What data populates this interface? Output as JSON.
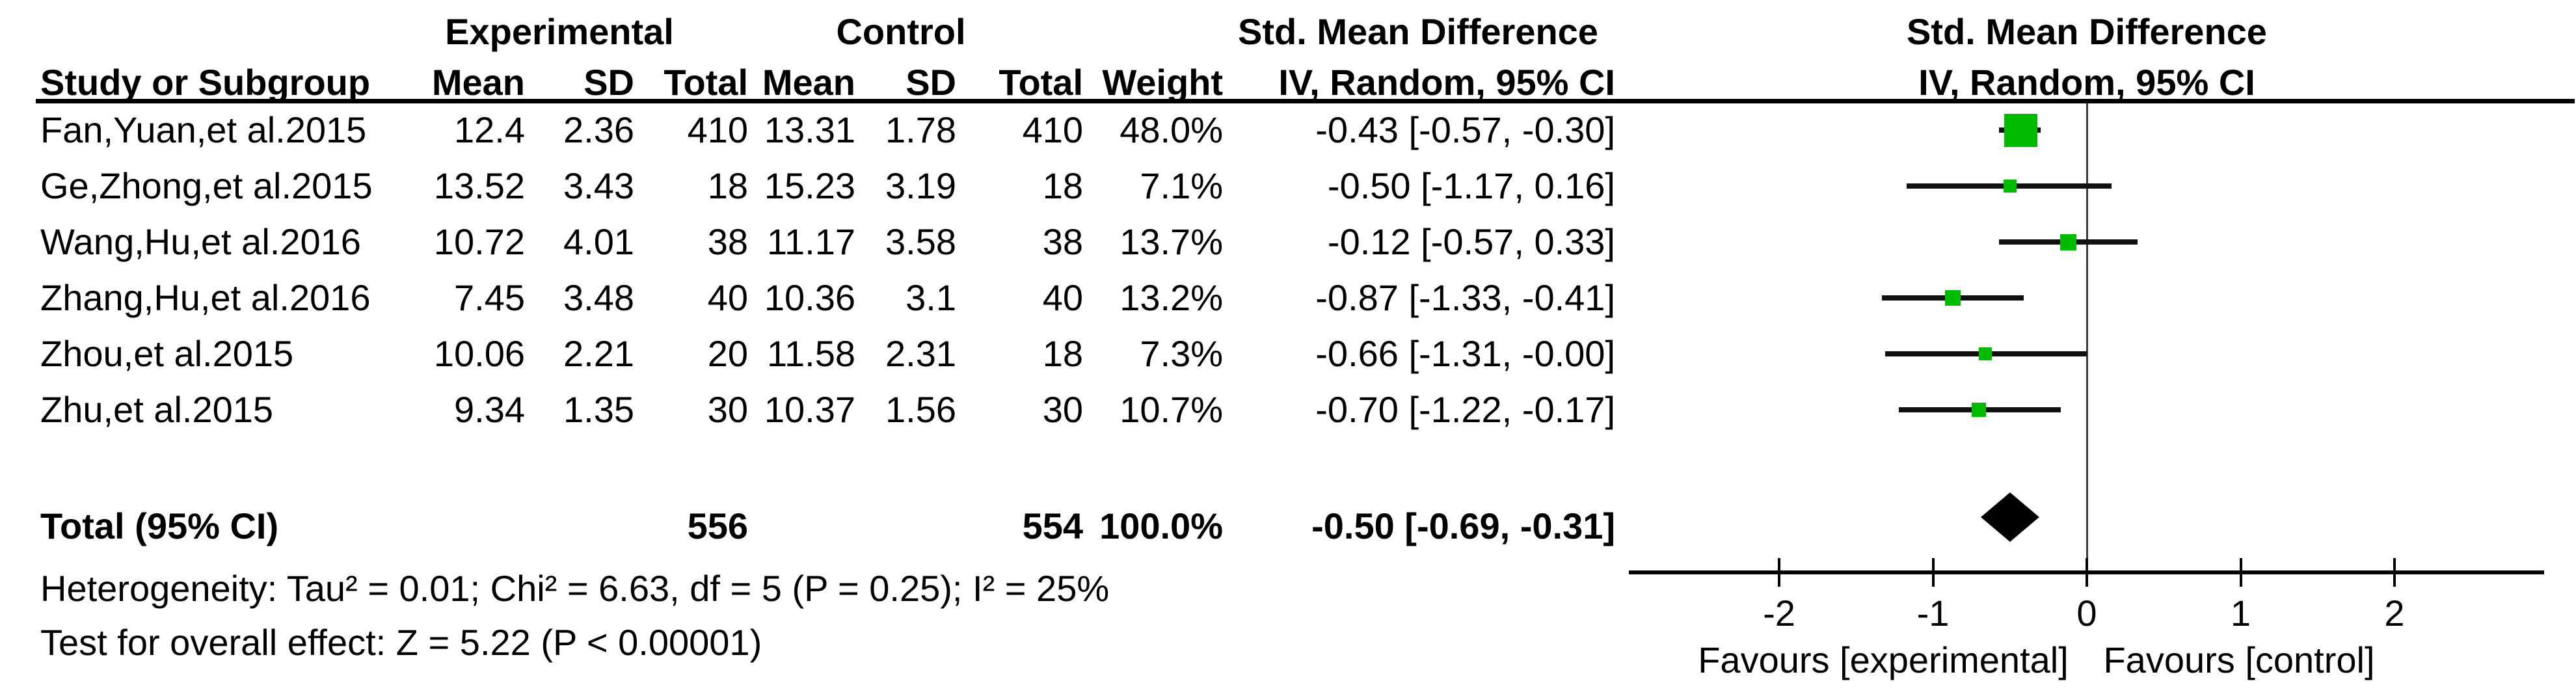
{
  "colors": {
    "marker_green": "#00BB00",
    "line_black": "#000000",
    "background": "#FFFFFF"
  },
  "headers": {
    "group_experimental": "Experimental",
    "group_control": "Control",
    "smd_left": "Std. Mean Difference",
    "smd_right": "Std. Mean Difference",
    "study": "Study or Subgroup",
    "mean": "Mean",
    "sd": "SD",
    "total": "Total",
    "weight": "Weight",
    "method_left": "IV, Random, 95% CI",
    "method_right": "IV, Random, 95% CI"
  },
  "chart_data": {
    "type": "scatter",
    "subtype": "forest-plot-meta-analysis",
    "effect_label": "Std. Mean Difference",
    "model": "IV, Random, 95% CI",
    "studies": [
      {
        "label": "Fan,Yuan,et al.2015",
        "exp": {
          "mean": "12.4",
          "sd": "2.36",
          "total": "410"
        },
        "ctrl": {
          "mean": "13.31",
          "sd": "1.78",
          "total": "410"
        },
        "weight": "48.0%",
        "weight_pct": 48.0,
        "ci_label": "-0.43 [-0.57, -0.30]",
        "est": -0.43,
        "lo": -0.57,
        "hi": -0.3
      },
      {
        "label": "Ge,Zhong,et al.2015",
        "exp": {
          "mean": "13.52",
          "sd": "3.43",
          "total": "18"
        },
        "ctrl": {
          "mean": "15.23",
          "sd": "3.19",
          "total": "18"
        },
        "weight": "7.1%",
        "weight_pct": 7.1,
        "ci_label": "-0.50 [-1.17, 0.16]",
        "est": -0.5,
        "lo": -1.17,
        "hi": 0.16
      },
      {
        "label": "Wang,Hu,et al.2016",
        "exp": {
          "mean": "10.72",
          "sd": "4.01",
          "total": "38"
        },
        "ctrl": {
          "mean": "11.17",
          "sd": "3.58",
          "total": "38"
        },
        "weight": "13.7%",
        "weight_pct": 13.7,
        "ci_label": "-0.12 [-0.57, 0.33]",
        "est": -0.12,
        "lo": -0.57,
        "hi": 0.33
      },
      {
        "label": "Zhang,Hu,et al.2016",
        "exp": {
          "mean": "7.45",
          "sd": "3.48",
          "total": "40"
        },
        "ctrl": {
          "mean": "10.36",
          "sd": "3.1",
          "total": "40"
        },
        "weight": "13.2%",
        "weight_pct": 13.2,
        "ci_label": "-0.87 [-1.33, -0.41]",
        "est": -0.87,
        "lo": -1.33,
        "hi": -0.41
      },
      {
        "label": "Zhou,et al.2015",
        "exp": {
          "mean": "10.06",
          "sd": "2.21",
          "total": "20"
        },
        "ctrl": {
          "mean": "11.58",
          "sd": "2.31",
          "total": "18"
        },
        "weight": "7.3%",
        "weight_pct": 7.3,
        "ci_label": "-0.66 [-1.31, -0.00]",
        "est": -0.66,
        "lo": -1.31,
        "hi": 0.0
      },
      {
        "label": "Zhu,et al.2015",
        "exp": {
          "mean": "9.34",
          "sd": "1.35",
          "total": "30"
        },
        "ctrl": {
          "mean": "10.37",
          "sd": "1.56",
          "total": "30"
        },
        "weight": "10.7%",
        "weight_pct": 10.7,
        "ci_label": "-0.70 [-1.22, -0.17]",
        "est": -0.7,
        "lo": -1.22,
        "hi": -0.17
      }
    ],
    "total": {
      "label": "Total (95% CI)",
      "exp_total": "556",
      "ctrl_total": "554",
      "weight": "100.0%",
      "ci_label": "-0.50 [-0.69, -0.31]",
      "est": -0.5,
      "lo": -0.69,
      "hi": -0.31
    },
    "footnotes": {
      "heterogeneity": "Heterogeneity: Tau² = 0.01; Chi² = 6.63, df = 5 (P = 0.25); I² = 25%",
      "overall_effect": "Test for overall effect: Z = 5.22 (P < 0.00001)"
    },
    "axis": {
      "ticks": [
        -2,
        -1,
        0,
        1,
        2
      ],
      "tick_labels": [
        "-2",
        "-1",
        "0",
        "1",
        "2"
      ],
      "range_min": -2.98,
      "range_max": 2.97,
      "favours_left": "Favours [experimental]",
      "favours_right": "Favours [control]"
    }
  }
}
